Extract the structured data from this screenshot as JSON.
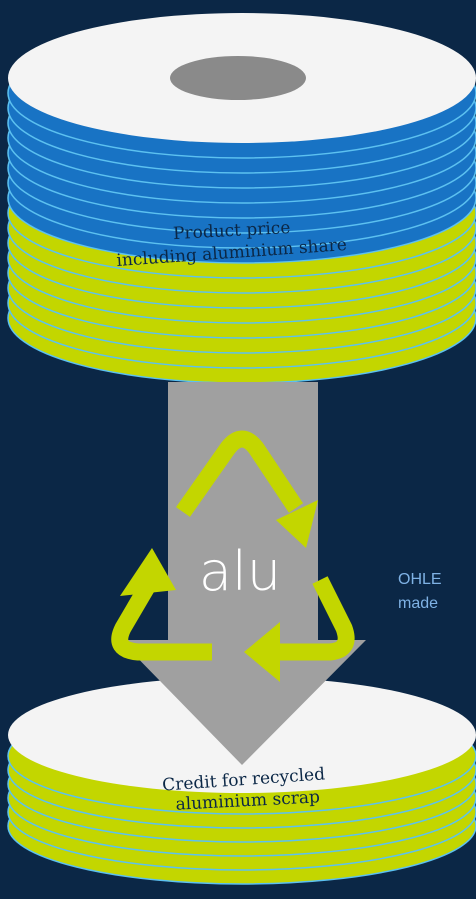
{
  "top_disc": {
    "label_lines": [
      "Product price",
      "including aluminium share"
    ]
  },
  "recycle": {
    "label": "alu"
  },
  "bottom_disc": {
    "label_lines": [
      "Credit for recycled",
      "aluminium scrap"
    ]
  },
  "side_note": {
    "lines": [
      "OHLE",
      "made"
    ]
  }
}
